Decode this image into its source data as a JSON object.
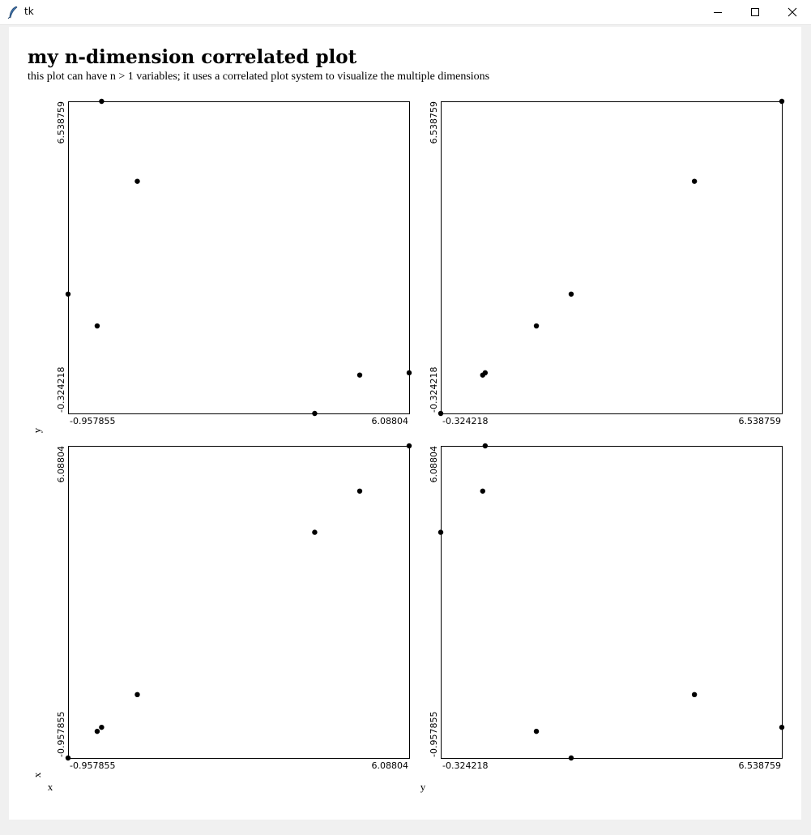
{
  "window": {
    "title": "tk",
    "icon": "feather-icon",
    "controls": [
      "minimize-icon",
      "maximize-icon",
      "close-icon"
    ]
  },
  "page": {
    "title": "my n-dimension correlated plot",
    "subtitle": "this plot can have n > 1 variables; it uses a correlated plot system to visualize the multiple dimensions"
  },
  "chart_data": {
    "type": "scatter",
    "variables": {
      "x": [
        -0.957855,
        -0.356,
        -0.265,
        0.473,
        4.137,
        5.067,
        6.08804
      ],
      "y": [
        2.3,
        1.6,
        6.538759,
        4.78,
        -0.324218,
        0.52,
        0.57
      ]
    },
    "variable_ranges": {
      "x": [
        -0.957855,
        6.08804
      ],
      "y": [
        -0.324218,
        6.538759
      ]
    },
    "row_labels": [
      "y",
      "x"
    ],
    "column_labels": [
      "x",
      "y"
    ],
    "panels": [
      {
        "x_var": "x",
        "y_var": "y",
        "xlim": [
          -0.957855,
          6.08804
        ],
        "ylim": [
          -0.324218,
          6.538759
        ],
        "x_tick_labels": [
          "-0.957855",
          "6.08804"
        ],
        "y_tick_labels": [
          "-0.324218",
          "6.538759"
        ]
      },
      {
        "x_var": "y",
        "y_var": "y",
        "xlim": [
          -0.324218,
          6.538759
        ],
        "ylim": [
          -0.324218,
          6.538759
        ],
        "x_tick_labels": [
          "-0.324218",
          "6.538759"
        ],
        "y_tick_labels": [
          "-0.324218",
          "6.538759"
        ]
      },
      {
        "x_var": "x",
        "y_var": "x",
        "xlim": [
          -0.957855,
          6.08804
        ],
        "ylim": [
          -0.957855,
          6.08804
        ],
        "x_tick_labels": [
          "-0.957855",
          "6.08804"
        ],
        "y_tick_labels": [
          "-0.957855",
          "6.08804"
        ]
      },
      {
        "x_var": "y",
        "y_var": "x",
        "xlim": [
          -0.324218,
          6.538759
        ],
        "ylim": [
          -0.957855,
          6.08804
        ],
        "x_tick_labels": [
          "-0.324218",
          "6.538759"
        ],
        "y_tick_labels": [
          "-0.957855",
          "6.08804"
        ]
      }
    ],
    "grid": false,
    "legend": "none",
    "marker_color": "#000000"
  }
}
